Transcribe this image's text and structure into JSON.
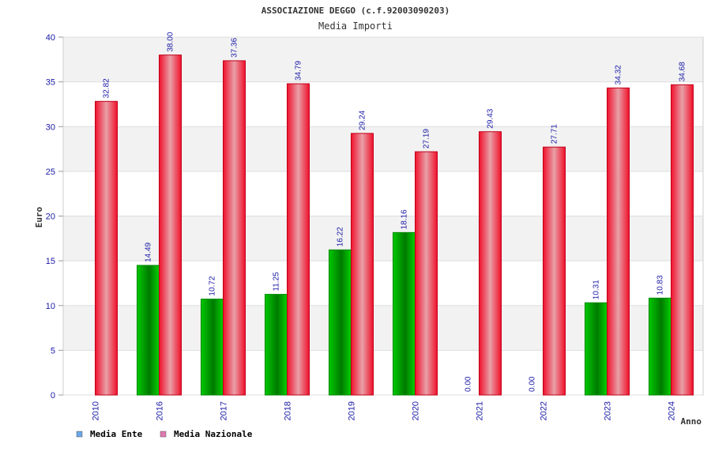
{
  "chart_data": {
    "type": "bar",
    "title": "ASSOCIAZIONE DEGGO (c.f.92003090203)",
    "subtitle": "Media Importi",
    "xlabel": "Anno",
    "ylabel": "Euro",
    "ylim": [
      0,
      40
    ],
    "yticks": [
      "0",
      "5",
      "10",
      "15",
      "20",
      "25",
      "30",
      "35",
      "40"
    ],
    "categories": [
      "2010",
      "2016",
      "2017",
      "2018",
      "2019",
      "2020",
      "2021",
      "2022",
      "2023",
      "2024"
    ],
    "series": [
      {
        "name": "Media Ente",
        "color": "#00b000",
        "values": [
          null,
          14.49,
          10.72,
          11.25,
          16.22,
          18.16,
          0.0,
          0.0,
          10.31,
          10.83
        ],
        "labels": [
          "",
          "14.49",
          "10.72",
          "11.25",
          "16.22",
          "18.16",
          "0.00",
          "0.00",
          "10.31",
          "10.83"
        ]
      },
      {
        "name": "Media Nazionale",
        "color": "#ee1c2e",
        "values": [
          32.82,
          38.0,
          37.36,
          34.79,
          29.24,
          27.19,
          29.43,
          27.71,
          34.32,
          34.68
        ],
        "labels": [
          "32.82",
          "38.00",
          "37.36",
          "34.79",
          "29.24",
          "27.19",
          "29.43",
          "27.71",
          "34.32",
          "34.68"
        ]
      }
    ],
    "grid": true,
    "legend_position": "bottom-left",
    "legend_swatch_colors": [
      "#6ba8e8",
      "#e07ab0"
    ]
  }
}
